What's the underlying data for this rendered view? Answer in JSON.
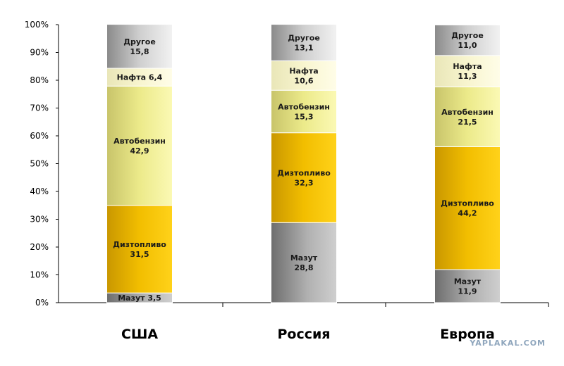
{
  "chart_data": {
    "type": "bar",
    "stacked": true,
    "categories": [
      "США",
      "Россия",
      "Европа"
    ],
    "ylim": [
      0,
      100
    ],
    "yticks": [
      "0%",
      "10%",
      "20%",
      "30%",
      "40%",
      "50%",
      "60%",
      "70%",
      "80%",
      "90%",
      "100%"
    ],
    "grid": false,
    "legend": "none",
    "series": [
      {
        "name": "Мазут",
        "values": [
          3.5,
          28.8,
          11.9
        ],
        "color": "#a3a3a3",
        "labels": [
          "Мазут 3,5",
          "Мазут\n28,8",
          "Мазут\n11,9"
        ]
      },
      {
        "name": "Дизтопливо",
        "values": [
          31.5,
          32.3,
          44.2
        ],
        "color": "#f2be00",
        "labels": [
          "Дизтопливо\n31,5",
          "Дизтопливо\n32,3",
          "Дизтопливо\n44,2"
        ]
      },
      {
        "name": "Автобензин",
        "values": [
          42.9,
          15.3,
          21.5
        ],
        "color": "#f0ea80",
        "labels": [
          "Автобензин\n42,9",
          "Автобензин\n15,3",
          "Автобензин\n21,5"
        ]
      },
      {
        "name": "Нафта",
        "values": [
          6.4,
          10.6,
          11.3
        ],
        "color": "#fbf7c8",
        "labels": [
          "Нафта 6,4",
          "Нафта\n10,6",
          "Нафта\n11,3"
        ]
      },
      {
        "name": "Другое",
        "values": [
          15.8,
          13.1,
          11.0
        ],
        "color": "#c0c0c0",
        "labels": [
          "Другое\n15,8",
          "Другое\n13,1",
          "Другое\n11,0"
        ]
      }
    ]
  },
  "watermark": "YAPLAKAL.COM"
}
